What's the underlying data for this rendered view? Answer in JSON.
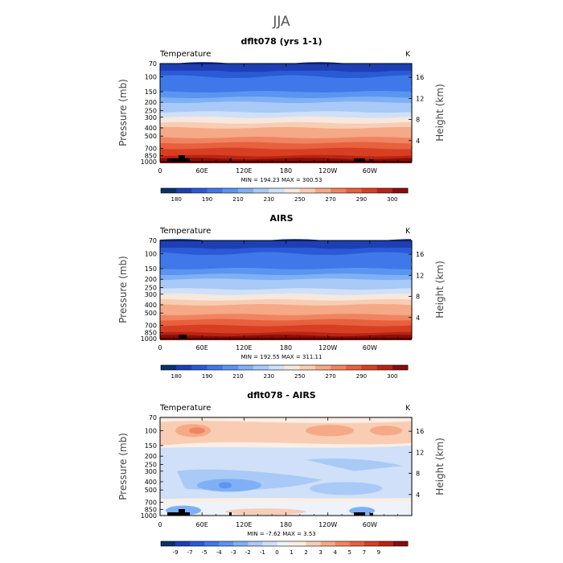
{
  "figure": {
    "season_title": "JJA",
    "units": "K",
    "variable": "Temperature"
  },
  "axes_labels": {
    "ylabel_left": "Pressure (mb)",
    "ylabel_right": "Height (km)",
    "pressure_ticks": [
      "70",
      "100",
      "150",
      "200",
      "250",
      "300",
      "400",
      "500",
      "700",
      "850",
      "1000"
    ],
    "height_ticks": [
      "4",
      "8",
      "12",
      "16"
    ],
    "lon_ticks": [
      "0",
      "60E",
      "120E",
      "180",
      "120W",
      "60W"
    ]
  },
  "colors": {
    "temperature_scale": [
      "#08306b",
      "#1d3fb5",
      "#2b5ad6",
      "#3f78e8",
      "#5a95f0",
      "#7fb0f5",
      "#a9c9f7",
      "#cfe0f8",
      "#f6e8dc",
      "#f8cdb4",
      "#f5a986",
      "#f08460",
      "#e8603e",
      "#d83f22",
      "#b82414",
      "#8a0d0a"
    ],
    "difference_scale": [
      "#08306b",
      "#1d3fb5",
      "#2b5ad6",
      "#3f78e8",
      "#5a95f0",
      "#7fb0f5",
      "#a9c9f7",
      "#cfe0f8",
      "#eef3fb",
      "#fbeee4",
      "#f8cdb4",
      "#f5a986",
      "#f08460",
      "#e8603e",
      "#d83f22",
      "#b82414",
      "#8a0d0a"
    ]
  },
  "chart_data": [
    {
      "type": "heatmap",
      "title": "dflt078 (yrs 1-1)",
      "subtitle": "Temperature",
      "units": "K",
      "x_ticks": [
        "0",
        "60E",
        "120E",
        "180",
        "120W",
        "60W"
      ],
      "y_ticks": [
        "70",
        "100",
        "150",
        "200",
        "250",
        "300",
        "400",
        "500",
        "700",
        "850",
        "1000"
      ],
      "stats": "MIN = 194.23   MAX = 300.53",
      "min": 194.23,
      "max": 300.53,
      "colorbar_labels": [
        "180",
        "190",
        "210",
        "230",
        "250",
        "270",
        "290",
        "300"
      ]
    },
    {
      "type": "heatmap",
      "title": "AIRS",
      "subtitle": "Temperature",
      "units": "K",
      "x_ticks": [
        "0",
        "60E",
        "120E",
        "180",
        "120W",
        "60W"
      ],
      "y_ticks": [
        "70",
        "100",
        "150",
        "200",
        "250",
        "300",
        "400",
        "500",
        "700",
        "850",
        "1000"
      ],
      "stats": "MIN = 192.55   MAX = 311.11",
      "min": 192.55,
      "max": 311.11,
      "colorbar_labels": [
        "180",
        "190",
        "210",
        "230",
        "250",
        "270",
        "290",
        "300"
      ]
    },
    {
      "type": "heatmap",
      "title": "dflt078 - AIRS",
      "subtitle": "Temperature",
      "units": "K",
      "x_ticks": [
        "0",
        "60E",
        "120E",
        "180",
        "120W",
        "60W"
      ],
      "y_ticks": [
        "70",
        "100",
        "150",
        "200",
        "250",
        "300",
        "400",
        "500",
        "700",
        "850",
        "1000"
      ],
      "stats": "MIN =   -7.62   MAX =     3.53",
      "min": -7.62,
      "max": 3.53,
      "colorbar_labels": [
        "-9",
        "-7",
        "-5",
        "-4",
        "-3",
        "-2",
        "-1",
        "0",
        "1",
        "2",
        "3",
        "4",
        "5",
        "7",
        "9"
      ]
    }
  ]
}
